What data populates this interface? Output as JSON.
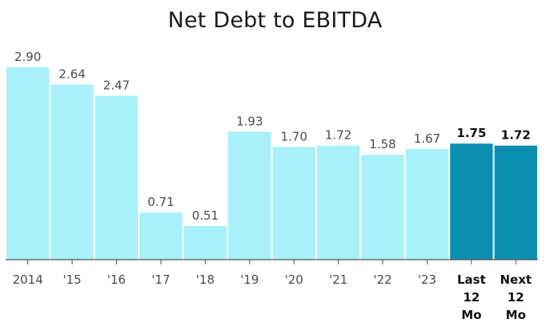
{
  "chart_data": {
    "type": "bar",
    "title": "Net Debt to EBITDA",
    "categories": [
      "2014",
      "'15",
      "'16",
      "'17",
      "'18",
      "'19",
      "'20",
      "'21",
      "'22",
      "'23",
      "Last 12 Mo",
      "Next 12 Mo"
    ],
    "category_lines": [
      [
        "2014"
      ],
      [
        "'15"
      ],
      [
        "'16"
      ],
      [
        "'17"
      ],
      [
        "'18"
      ],
      [
        "'19"
      ],
      [
        "'20"
      ],
      [
        "'21"
      ],
      [
        "'22"
      ],
      [
        "'23"
      ],
      [
        "Last",
        "12",
        "Mo"
      ],
      [
        "Next",
        "12",
        "Mo"
      ]
    ],
    "values": [
      2.9,
      2.64,
      2.47,
      0.71,
      0.51,
      1.93,
      1.7,
      1.72,
      1.58,
      1.67,
      1.75,
      1.72
    ],
    "value_labels": [
      "2.90",
      "2.64",
      "2.47",
      "0.71",
      "0.51",
      "1.93",
      "1.70",
      "1.72",
      "1.58",
      "1.67",
      "1.75",
      "1.72"
    ],
    "highlighted": [
      false,
      false,
      false,
      false,
      false,
      false,
      false,
      false,
      false,
      false,
      true,
      true
    ],
    "xlabel": "",
    "ylabel": "",
    "ylim": [
      0,
      3.0
    ],
    "grid": false,
    "colors": {
      "bar": "#a8f0fa",
      "bar_highlight": "#0b8fb0",
      "axis": "#555555"
    }
  }
}
